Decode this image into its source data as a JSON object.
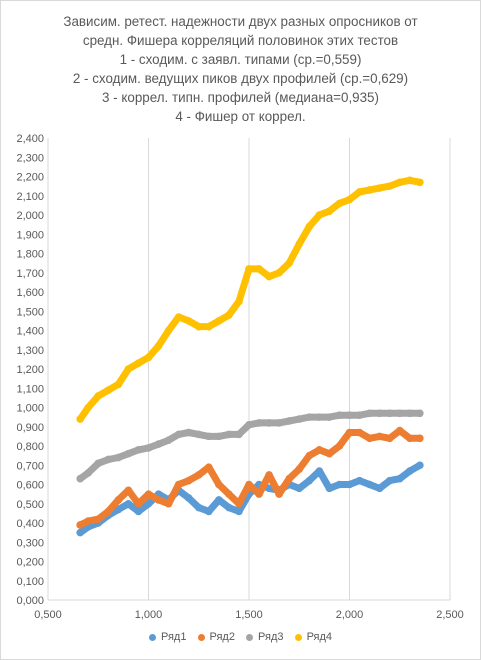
{
  "chart_data": {
    "type": "scatter",
    "title_lines": [
      "Зависим. ретест. надежности двух разных опросников от",
      "средн. Фишера корреляций половинок этих тестов",
      "1 - сходим. с заявл. типами (ср.=0,559)",
      "2 - сходим. ведущих пиков двух профилей (ср.=0,629)",
      "3 - коррел. типн. профилей (медиана=0,935)",
      "4 - Фишер от коррел."
    ],
    "xlim": [
      0.5,
      2.5
    ],
    "ylim": [
      0.0,
      2.4
    ],
    "x_ticks": [
      "0,500",
      "1,000",
      "1,500",
      "2,000",
      "2,500"
    ],
    "y_ticks": [
      "0,000",
      "0,100",
      "0,200",
      "0,300",
      "0,400",
      "0,500",
      "0,600",
      "0,700",
      "0,800",
      "0,900",
      "1,000",
      "1,100",
      "1,200",
      "1,300",
      "1,400",
      "1,500",
      "1,600",
      "1,700",
      "1,800",
      "1,900",
      "2,000",
      "2,100",
      "2,200",
      "2,300",
      "2,400"
    ],
    "grid": "vertical",
    "legend": "bottom",
    "series": [
      {
        "name": "Ряд1",
        "color": "#5b9bd5",
        "x": [
          0.66,
          0.7,
          0.75,
          0.8,
          0.85,
          0.9,
          0.95,
          1.0,
          1.05,
          1.1,
          1.15,
          1.2,
          1.25,
          1.3,
          1.35,
          1.4,
          1.45,
          1.5,
          1.55,
          1.6,
          1.65,
          1.7,
          1.75,
          1.8,
          1.85,
          1.9,
          1.95,
          2.0,
          2.05,
          2.1,
          2.15,
          2.2,
          2.25,
          2.3,
          2.35
        ],
        "y": [
          0.35,
          0.38,
          0.4,
          0.44,
          0.47,
          0.5,
          0.46,
          0.5,
          0.55,
          0.52,
          0.57,
          0.53,
          0.48,
          0.46,
          0.52,
          0.48,
          0.46,
          0.55,
          0.6,
          0.58,
          0.57,
          0.6,
          0.58,
          0.62,
          0.67,
          0.58,
          0.6,
          0.6,
          0.62,
          0.6,
          0.58,
          0.62,
          0.63,
          0.67,
          0.7
        ]
      },
      {
        "name": "Ряд2",
        "color": "#ed7d31",
        "x": [
          0.66,
          0.7,
          0.75,
          0.8,
          0.85,
          0.9,
          0.95,
          1.0,
          1.05,
          1.1,
          1.15,
          1.2,
          1.25,
          1.3,
          1.35,
          1.4,
          1.45,
          1.5,
          1.55,
          1.6,
          1.65,
          1.7,
          1.75,
          1.8,
          1.85,
          1.9,
          1.95,
          2.0,
          2.05,
          2.1,
          2.15,
          2.2,
          2.25,
          2.3,
          2.35
        ],
        "y": [
          0.39,
          0.41,
          0.42,
          0.46,
          0.52,
          0.57,
          0.5,
          0.55,
          0.52,
          0.5,
          0.6,
          0.62,
          0.65,
          0.69,
          0.6,
          0.55,
          0.5,
          0.6,
          0.55,
          0.65,
          0.55,
          0.63,
          0.68,
          0.75,
          0.78,
          0.76,
          0.8,
          0.87,
          0.87,
          0.84,
          0.85,
          0.84,
          0.88,
          0.84,
          0.84
        ]
      },
      {
        "name": "Ряд3",
        "color": "#a5a5a5",
        "x": [
          0.66,
          0.7,
          0.75,
          0.8,
          0.85,
          0.9,
          0.95,
          1.0,
          1.05,
          1.1,
          1.15,
          1.2,
          1.25,
          1.3,
          1.35,
          1.4,
          1.45,
          1.5,
          1.55,
          1.6,
          1.65,
          1.7,
          1.75,
          1.8,
          1.85,
          1.9,
          1.95,
          2.0,
          2.05,
          2.1,
          2.15,
          2.2,
          2.25,
          2.3,
          2.35
        ],
        "y": [
          0.63,
          0.66,
          0.71,
          0.73,
          0.74,
          0.76,
          0.78,
          0.79,
          0.81,
          0.83,
          0.86,
          0.87,
          0.86,
          0.85,
          0.85,
          0.86,
          0.86,
          0.91,
          0.92,
          0.92,
          0.92,
          0.93,
          0.94,
          0.95,
          0.95,
          0.95,
          0.96,
          0.96,
          0.96,
          0.97,
          0.97,
          0.97,
          0.97,
          0.97,
          0.97
        ]
      },
      {
        "name": "Ряд4",
        "color": "#ffc000",
        "x": [
          0.66,
          0.7,
          0.75,
          0.8,
          0.85,
          0.9,
          0.95,
          1.0,
          1.05,
          1.1,
          1.15,
          1.2,
          1.25,
          1.3,
          1.35,
          1.4,
          1.45,
          1.5,
          1.55,
          1.6,
          1.65,
          1.7,
          1.75,
          1.8,
          1.85,
          1.9,
          1.95,
          2.0,
          2.05,
          2.1,
          2.15,
          2.2,
          2.25,
          2.3,
          2.35
        ],
        "y": [
          0.94,
          1.0,
          1.06,
          1.09,
          1.12,
          1.2,
          1.23,
          1.26,
          1.32,
          1.4,
          1.47,
          1.45,
          1.42,
          1.42,
          1.45,
          1.48,
          1.55,
          1.72,
          1.72,
          1.68,
          1.7,
          1.75,
          1.85,
          1.94,
          2.0,
          2.02,
          2.06,
          2.08,
          2.12,
          2.13,
          2.14,
          2.15,
          2.17,
          2.18,
          2.17
        ]
      }
    ]
  }
}
